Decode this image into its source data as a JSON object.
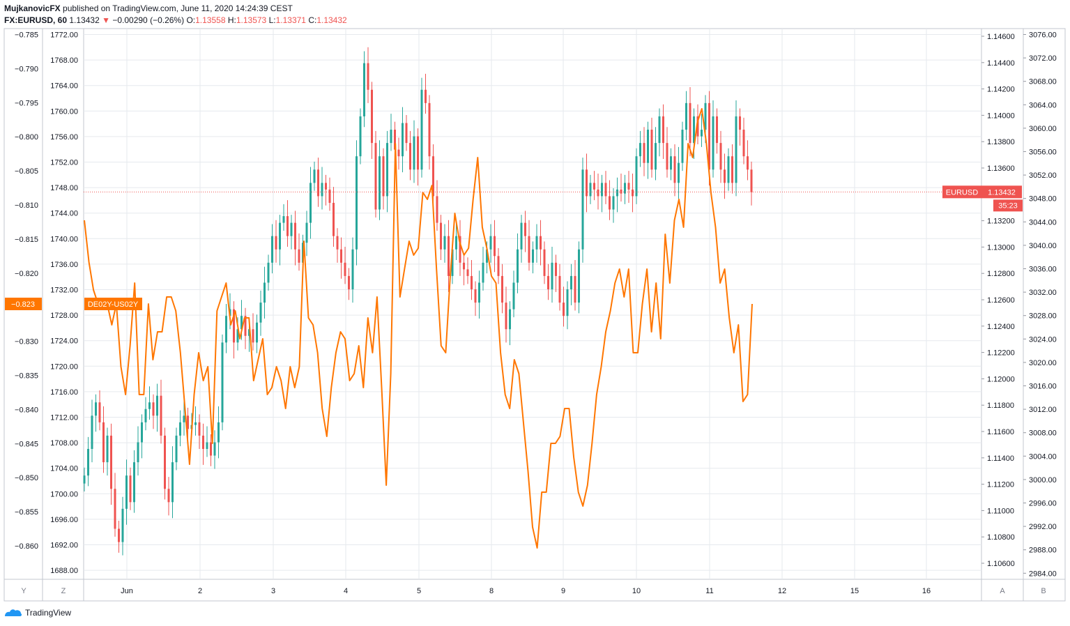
{
  "header": {
    "author": "MujkanovicFX",
    "published": "published on TradingView.com, June 11, 2020 14:24:39 CEST",
    "symbol": "FX:EURUSD, 60",
    "last": "1.13432",
    "change_arrow": "▼",
    "change": "−0.00290 (−0.26%)",
    "o_label": "O:",
    "o_value": "1.13558",
    "h_label": "H:",
    "h_value": "1.13573",
    "l_label": "L:",
    "l_value": "1.13371",
    "c_label": "C:",
    "c_value": "1.13432"
  },
  "footer": {
    "brand": "TradingView",
    "logo_icon": "tradingview-logo-icon"
  },
  "colors": {
    "up": "#26a69a",
    "down": "#ef5350",
    "spread": "#ff7600",
    "price_line": "#ef5350",
    "grid": "#e6e9ee"
  },
  "chart_data": {
    "type": "line",
    "x_tick_labels": [
      "Jun",
      "2",
      "3",
      "4",
      "5",
      "8",
      "9",
      "10",
      "11",
      "12",
      "15",
      "16"
    ],
    "corner_buttons": {
      "left_outer": "Y",
      "left_inner": "Z",
      "right_inner": "A",
      "right_outer": "B"
    },
    "axes": {
      "left_spread": {
        "ticks": [
          "−0.785",
          "−0.790",
          "−0.795",
          "−0.800",
          "−0.805",
          "−0.810",
          "−0.815",
          "−0.820",
          "−0.825",
          "−0.830",
          "−0.835",
          "−0.840",
          "−0.845",
          "−0.850",
          "−0.855",
          "−0.860"
        ],
        "range": [
          -0.8625,
          -0.7835
        ]
      },
      "left_index": {
        "ticks": [
          "1772.00",
          "1768.00",
          "1764.00",
          "1760.00",
          "1756.00",
          "1752.00",
          "1748.00",
          "1744.00",
          "1740.00",
          "1736.00",
          "1732.00",
          "1728.00",
          "1724.00",
          "1720.00",
          "1716.00",
          "1712.00",
          "1708.00",
          "1704.00",
          "1700.00",
          "1696.00",
          "1692.00",
          "1688.00"
        ]
      },
      "right_price": {
        "ticks": [
          "1.14600",
          "1.14400",
          "1.14200",
          "1.14000",
          "1.13800",
          "1.13600",
          "1.13400",
          "1.13200",
          "1.13000",
          "1.12800",
          "1.12600",
          "1.12400",
          "1.12200",
          "1.12000",
          "1.11800",
          "1.11600",
          "1.11400",
          "1.11200",
          "1.11000",
          "1.10800",
          "1.10600"
        ],
        "range": [
          1.1052,
          1.1466
        ]
      },
      "right_index": {
        "ticks": [
          "3076.00",
          "3072.00",
          "3068.00",
          "3064.00",
          "3060.00",
          "3056.00",
          "3052.00",
          "3048.00",
          "3044.00",
          "3040.00",
          "3036.00",
          "3032.00",
          "3028.00",
          "3024.00",
          "3020.00",
          "3016.00",
          "3012.00",
          "3008.00",
          "3004.00",
          "3000.00",
          "2996.00",
          "2992.00",
          "2988.00",
          "2984.00"
        ]
      }
    },
    "series": [
      {
        "name": "EURUSD",
        "kind": "candlestick",
        "last_label": "1.13432",
        "countdown": "35:23",
        "closes": [
          1.113,
          1.115,
          1.1175,
          1.1185,
          1.117,
          1.114,
          1.116,
          1.112,
          1.109,
          1.108,
          1.1105,
          1.113,
          1.111,
          1.114,
          1.1155,
          1.117,
          1.118,
          1.1185,
          1.1175,
          1.119,
          1.116,
          1.112,
          1.111,
          1.114,
          1.116,
          1.117,
          1.1175,
          1.1165,
          1.1168,
          1.117,
          1.116,
          1.115,
          1.1155,
          1.1145,
          1.1155,
          1.117,
          1.123,
          1.125,
          1.1255,
          1.123,
          1.124,
          1.125,
          1.1235,
          1.124,
          1.123,
          1.1245,
          1.126,
          1.1275,
          1.129,
          1.131,
          1.13,
          1.132,
          1.1325,
          1.131,
          1.132,
          1.13,
          1.129,
          1.1305,
          1.132,
          1.135,
          1.136,
          1.134,
          1.135,
          1.1345,
          1.1335,
          1.131,
          1.13,
          1.129,
          1.128,
          1.127,
          1.13,
          1.137,
          1.14,
          1.144,
          1.142,
          1.138,
          1.133,
          1.137,
          1.134,
          1.138,
          1.139,
          1.1375,
          1.137,
          1.1395,
          1.138,
          1.136,
          1.1385,
          1.136,
          1.142,
          1.141,
          1.137,
          1.134,
          1.132,
          1.13,
          1.131,
          1.128,
          1.13,
          1.131,
          1.129,
          1.1285,
          1.128,
          1.127,
          1.126,
          1.1275,
          1.129,
          1.13,
          1.131,
          1.1295,
          1.128,
          1.126,
          1.124,
          1.1255,
          1.1275,
          1.13,
          1.132,
          1.131,
          1.129,
          1.13,
          1.131,
          1.13,
          1.128,
          1.127,
          1.129,
          1.128,
          1.126,
          1.125,
          1.127,
          1.128,
          1.126,
          1.13,
          1.136,
          1.134,
          1.135,
          1.1345,
          1.134,
          1.135,
          1.134,
          1.133,
          1.134,
          1.1345,
          1.1342,
          1.135,
          1.1345,
          1.134,
          1.137,
          1.138,
          1.1365,
          1.139,
          1.136,
          1.138,
          1.14,
          1.138,
          1.136,
          1.137,
          1.135,
          1.1365,
          1.139,
          1.141,
          1.138,
          1.14,
          1.1385,
          1.139,
          1.141,
          1.136,
          1.14,
          1.138,
          1.136,
          1.135,
          1.137,
          1.135,
          1.14,
          1.139,
          1.137,
          1.136,
          1.1343
        ]
      },
      {
        "name": "DE02Y-US02Y",
        "kind": "line",
        "last_label": "−0.823",
        "values": [
          -0.811,
          -0.817,
          -0.821,
          -0.823,
          -0.823,
          -0.823,
          -0.826,
          -0.823,
          -0.832,
          -0.836,
          -0.829,
          -0.82,
          -0.836,
          -0.836,
          -0.823,
          -0.831,
          -0.827,
          -0.827,
          -0.822,
          -0.822,
          -0.824,
          -0.83,
          -0.838,
          -0.846,
          -0.836,
          -0.83,
          -0.834,
          -0.832,
          -0.843,
          -0.824,
          -0.822,
          -0.82,
          -0.826,
          -0.824,
          -0.828,
          -0.825,
          -0.825,
          -0.834,
          -0.831,
          -0.828,
          -0.836,
          -0.835,
          -0.832,
          -0.834,
          -0.838,
          -0.832,
          -0.835,
          -0.832,
          -0.814,
          -0.825,
          -0.826,
          -0.83,
          -0.838,
          -0.842,
          -0.835,
          -0.83,
          -0.827,
          -0.828,
          -0.834,
          -0.833,
          -0.829,
          -0.835,
          -0.825,
          -0.83,
          -0.822,
          -0.835,
          -0.849,
          -0.833,
          -0.8,
          -0.822,
          -0.818,
          -0.814,
          -0.816,
          -0.815,
          -0.807,
          -0.808,
          -0.806,
          -0.818,
          -0.829,
          -0.83,
          -0.819,
          -0.81,
          -0.814,
          -0.816,
          -0.815,
          -0.808,
          -0.802,
          -0.812,
          -0.815,
          -0.819,
          -0.82,
          -0.83,
          -0.836,
          -0.838,
          -0.831,
          -0.833,
          -0.84,
          -0.847,
          -0.855,
          -0.858,
          -0.85,
          -0.85,
          -0.843,
          -0.843,
          -0.842,
          -0.838,
          -0.838,
          -0.845,
          -0.85,
          -0.852,
          -0.849,
          -0.843,
          -0.836,
          -0.832,
          -0.827,
          -0.824,
          -0.82,
          -0.818,
          -0.822,
          -0.818,
          -0.83,
          -0.83,
          -0.823,
          -0.818,
          -0.827,
          -0.82,
          -0.828,
          -0.813,
          -0.82,
          -0.811,
          -0.808,
          -0.812,
          -0.8,
          -0.802,
          -0.797,
          -0.795,
          -0.8,
          -0.807,
          -0.812,
          -0.82,
          -0.818,
          -0.825,
          -0.83,
          -0.826,
          -0.837,
          -0.836,
          -0.823
        ]
      }
    ]
  }
}
